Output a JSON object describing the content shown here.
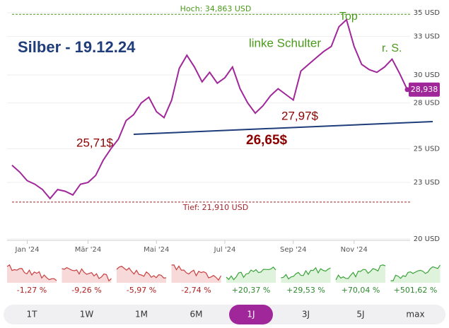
{
  "chart_data": {
    "type": "line",
    "title": "Silber - 19.12.24",
    "categories": [
      null,
      null,
      "Jan '24",
      null,
      null,
      null,
      null,
      null,
      null,
      null,
      "Mär '24",
      null,
      null,
      null,
      null,
      null,
      null,
      null,
      null,
      "Mai '24",
      null,
      null,
      null,
      null,
      null,
      null,
      null,
      null,
      "Jul '24",
      null,
      null,
      null,
      null,
      null,
      null,
      null,
      null,
      "Sep '24",
      null,
      null,
      null,
      null,
      null,
      null,
      null,
      "Nov '24",
      null,
      null,
      null,
      null,
      null,
      null,
      null
    ],
    "series": [
      {
        "name": "Silber",
        "color": "#a0279a",
        "values": [
          24.0,
          23.6,
          23.1,
          22.9,
          22.6,
          22.1,
          22.6,
          22.5,
          22.3,
          22.9,
          23.0,
          23.4,
          24.3,
          25.0,
          25.6,
          26.8,
          27.2,
          28.0,
          28.4,
          27.4,
          27.0,
          28.2,
          30.5,
          31.5,
          30.6,
          29.5,
          30.2,
          29.4,
          29.8,
          30.6,
          29.0,
          28.0,
          27.3,
          27.8,
          28.5,
          29.0,
          28.6,
          28.2,
          30.3,
          30.8,
          31.3,
          31.8,
          32.2,
          33.8,
          34.4,
          32.2,
          30.8,
          30.4,
          30.2,
          30.6,
          31.2,
          30.1,
          28.938
        ]
      }
    ],
    "last_label": "28,938",
    "ylim": [
      20,
      35
    ],
    "yticks": [
      {
        "value": 20,
        "label": "20 USD"
      },
      {
        "value": 23,
        "label": "23 USD"
      },
      {
        "value": 25,
        "label": "25 USD"
      },
      {
        "value": 28,
        "label": "28 USD"
      },
      {
        "value": 30,
        "label": "30 USD"
      },
      {
        "value": 33,
        "label": "33 USD"
      },
      {
        "value": 35,
        "label": "35 USD"
      }
    ],
    "log_scale": true,
    "grid": true,
    "high": {
      "value": 34.863,
      "label": "Hoch: 34,863 USD",
      "color": "#4a9a1a"
    },
    "low": {
      "value": 21.91,
      "label": "Tief: 21,910 USD",
      "color": "#a0252a"
    },
    "annotations": [
      "linke Schulter",
      "Top",
      "r. S.",
      "25,71$",
      "27,97$",
      "26,65$"
    ]
  },
  "performance": {
    "values": [
      -1.27,
      -9.26,
      -5.97,
      -2.74,
      20.37,
      29.53,
      70.04,
      501.62
    ],
    "value_labels": [
      "-1,27 %",
      "-9,26 %",
      "-5,97 %",
      "-2,74 %",
      "+20,37 %",
      "+29,53 %",
      "+70,04 %",
      "+501,62 %"
    ]
  },
  "buttons": [
    "1T",
    "1W",
    "1M",
    "6M",
    "1J",
    "3J",
    "5J",
    "max"
  ],
  "active_button": "1J"
}
